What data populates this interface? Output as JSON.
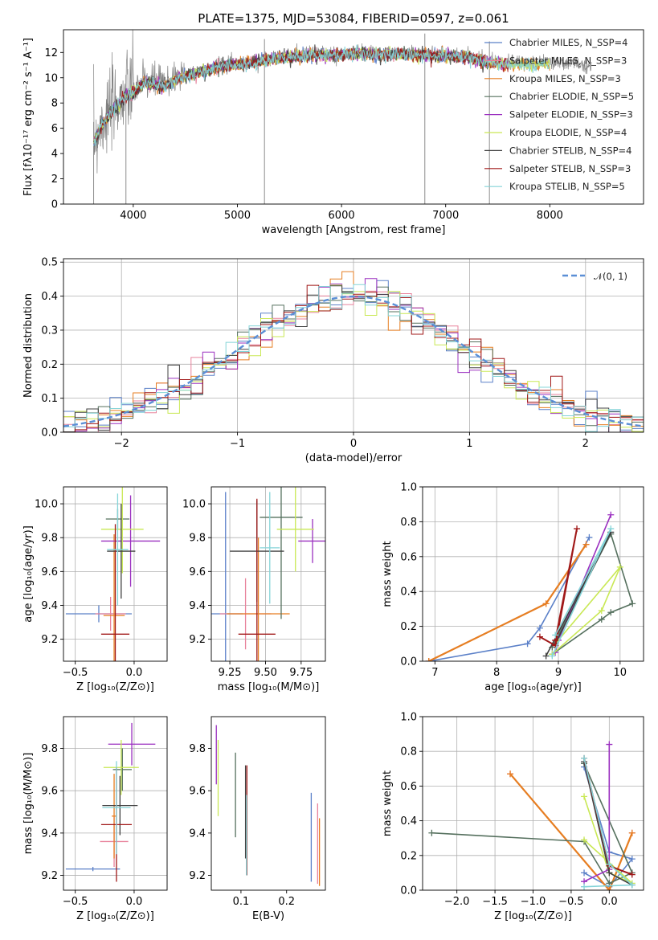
{
  "colors": [
    "#5b80c8",
    "#e8829c",
    "#e67e22",
    "#55705e",
    "#9b30c0",
    "#c9e855",
    "#404040",
    "#a01818",
    "#84d4d8"
  ],
  "chart_data": [
    {
      "id": "spectrum",
      "type": "line",
      "title": "PLATE=1375, MJD=53084, FIBERID=0597, z=0.061",
      "xlabel": "wavelength [Angstrom, rest frame]",
      "ylabel": "Flux [fλ10⁻¹⁷ erg cm⁻² s⁻¹ A⁻¹]",
      "xlim": [
        3330,
        8900
      ],
      "ylim": [
        0,
        13.8
      ],
      "xticks": [
        4000,
        5000,
        6000,
        7000,
        8000
      ],
      "yticks": [
        0,
        2,
        4,
        6,
        8,
        10,
        12
      ],
      "grid": false,
      "legend_position": "right",
      "legend": [
        "Chabrier MILES, N_SSP=4",
        "Salpeter MILES, N_SSP=3",
        "Kroupa MILES, N_SSP=3",
        "Chabrier ELODIE, N_SSP=5",
        "Salpeter ELODIE, N_SSP=3",
        "Kroupa ELODIE, N_SSP=4",
        "Chabrier STELIB, N_SSP=4",
        "Salpeter STELIB, N_SSP=3",
        "Kroupa STELIB, N_SSP=5"
      ],
      "data_color": "#808080",
      "continuum": [
        [
          3620,
          5.0
        ],
        [
          3700,
          6.5
        ],
        [
          3800,
          7.5
        ],
        [
          3900,
          8.6
        ],
        [
          4000,
          9.0
        ],
        [
          4100,
          9.8
        ],
        [
          4200,
          9.7
        ],
        [
          4300,
          9.5
        ],
        [
          4400,
          10.0
        ],
        [
          4500,
          10.3
        ],
        [
          4600,
          10.5
        ],
        [
          4700,
          10.7
        ],
        [
          4800,
          11.0
        ],
        [
          4900,
          11.2
        ],
        [
          5000,
          11.2
        ],
        [
          5100,
          11.3
        ],
        [
          5200,
          11.5
        ],
        [
          5300,
          11.6
        ],
        [
          5400,
          11.8
        ],
        [
          5500,
          11.8
        ],
        [
          5600,
          11.9
        ],
        [
          5800,
          12.0
        ],
        [
          6000,
          12.0
        ],
        [
          6200,
          12.1
        ],
        [
          6400,
          12.0
        ],
        [
          6600,
          12.0
        ],
        [
          6800,
          12.0
        ],
        [
          7000,
          11.9
        ],
        [
          7200,
          11.8
        ],
        [
          7400,
          11.4
        ],
        [
          7600,
          11.2
        ],
        [
          7800,
          11.2
        ],
        [
          8000,
          11.2
        ],
        [
          8200,
          11.1
        ],
        [
          8400,
          11.0
        ]
      ],
      "spikes_down": [
        [
          3620,
          0
        ],
        [
          3930,
          0
        ],
        [
          5260,
          0
        ],
        [
          6800,
          0
        ],
        [
          7420,
          0
        ]
      ],
      "models_end_x": [
        7400,
        7600,
        8000
      ]
    },
    {
      "id": "residuals",
      "type": "histogram",
      "xlabel": "(data-model)/error",
      "ylabel": "Normed distribution",
      "xlim": [
        -2.5,
        2.5
      ],
      "ylim": [
        0,
        0.51
      ],
      "xticks": [
        -2,
        -1,
        0,
        1,
        2
      ],
      "yticks": [
        0.0,
        0.1,
        0.2,
        0.3,
        0.4,
        0.5
      ],
      "grid": true,
      "legend_position": "upper right",
      "legend": [
        "𝒩(0, 1)"
      ],
      "gauss_color": "#5b8fd6",
      "bin_width": 0.1
    },
    {
      "id": "age-vs-z",
      "type": "errorbar",
      "xlabel": "Z [log₁₀(Z/Z⊙)]",
      "ylabel": "age  [log₁₀(age/yr)]",
      "xlim": [
        -0.6,
        0.28
      ],
      "ylim": [
        9.07,
        10.1
      ],
      "xticks": [
        -0.5,
        0.0
      ],
      "yticks": [
        9.2,
        9.4,
        9.6,
        9.8,
        10.0
      ],
      "grid": true,
      "points": [
        {
          "x": -0.3,
          "y": 9.35,
          "xerr": 0.28,
          "yerr": 0.05,
          "c": 0
        },
        {
          "x": -0.2,
          "y": 9.35,
          "xerr": 0.13,
          "yerr": 0.1,
          "c": 1
        },
        {
          "x": -0.17,
          "y": 9.34,
          "xerr": 0.09,
          "yerr": 0.48,
          "c": 2
        },
        {
          "x": -0.14,
          "y": 9.91,
          "xerr": 0.1,
          "yerr": 0.06,
          "c": 3
        },
        {
          "x": -0.03,
          "y": 9.78,
          "xerr": 0.25,
          "yerr": 0.27,
          "c": 4
        },
        {
          "x": -0.1,
          "y": 9.85,
          "xerr": 0.18,
          "yerr": 0.26,
          "c": 5
        },
        {
          "x": -0.11,
          "y": 9.72,
          "xerr": 0.12,
          "yerr": 0.28,
          "c": 6
        },
        {
          "x": -0.16,
          "y": 9.23,
          "xerr": 0.12,
          "yerr": 0.65,
          "c": 7
        },
        {
          "x": -0.14,
          "y": 9.73,
          "xerr": 0.09,
          "yerr": 0.33,
          "c": 8
        }
      ]
    },
    {
      "id": "age-vs-mass",
      "type": "errorbar",
      "xlabel": "mass [log₁₀(M/M⊙)]",
      "ylabel": "",
      "xlim": [
        9.12,
        9.92
      ],
      "ylim": [
        9.07,
        10.1
      ],
      "xticks": [
        9.25,
        9.5,
        9.75
      ],
      "yticks": [
        9.2,
        9.4,
        9.6,
        9.8,
        10.0
      ],
      "grid": true,
      "points": [
        {
          "x": 9.22,
          "y": 9.35,
          "xerr": 0.12,
          "yerr": 0.72,
          "c": 0
        },
        {
          "x": 9.36,
          "y": 9.35,
          "xerr": 0.18,
          "yerr": 0.21,
          "c": 1
        },
        {
          "x": 9.45,
          "y": 9.35,
          "xerr": 0.22,
          "yerr": 0.45,
          "c": 2
        },
        {
          "x": 9.61,
          "y": 9.92,
          "xerr": 0.15,
          "yerr": 0.6,
          "c": 3
        },
        {
          "x": 9.83,
          "y": 9.78,
          "xerr": 0.1,
          "yerr": 0.13,
          "c": 4
        },
        {
          "x": 9.71,
          "y": 9.85,
          "xerr": 0.13,
          "yerr": 0.25,
          "c": 5
        },
        {
          "x": 9.44,
          "y": 9.72,
          "xerr": 0.19,
          "yerr": 0.3,
          "c": 6
        },
        {
          "x": 9.44,
          "y": 9.23,
          "xerr": 0.13,
          "yerr": 0.8,
          "c": 7
        },
        {
          "x": 9.53,
          "y": 9.74,
          "xerr": 0.07,
          "yerr": 0.33,
          "c": 8
        }
      ]
    },
    {
      "id": "weight-vs-age",
      "type": "line",
      "xlabel": "age  [log₁₀(age/yr)]",
      "ylabel": "mass weight",
      "xlim": [
        6.8,
        10.38
      ],
      "ylim": [
        0,
        1.0
      ],
      "xticks": [
        7,
        8,
        9,
        10
      ],
      "yticks": [
        0.0,
        0.2,
        0.4,
        0.6,
        0.8,
        1.0
      ],
      "grid": true,
      "series": [
        {
          "c": 0,
          "w": 1.6,
          "pts": [
            [
              6.9,
              0.0
            ],
            [
              8.5,
              0.1
            ],
            [
              8.7,
              0.19
            ],
            [
              9.5,
              0.71
            ]
          ]
        },
        {
          "c": 1,
          "w": 1.6,
          "pts": [
            [
              6.9,
              0.0
            ],
            [
              8.8,
              0.33
            ],
            [
              9.45,
              0.67
            ]
          ]
        },
        {
          "c": 2,
          "w": 2.2,
          "pts": [
            [
              6.9,
              0.0
            ],
            [
              8.8,
              0.33
            ],
            [
              9.45,
              0.67
            ]
          ]
        },
        {
          "c": 3,
          "w": 1.6,
          "pts": [
            [
              8.9,
              0.04
            ],
            [
              9.7,
              0.24
            ],
            [
              9.85,
              0.28
            ],
            [
              10.2,
              0.33
            ],
            [
              9.85,
              0.73
            ],
            [
              8.9,
              0.08
            ]
          ]
        },
        {
          "c": 4,
          "w": 1.6,
          "pts": [
            [
              8.95,
              0.05
            ],
            [
              9.0,
              0.12
            ],
            [
              9.85,
              0.84
            ]
          ]
        },
        {
          "c": 5,
          "w": 1.6,
          "pts": [
            [
              8.9,
              0.04
            ],
            [
              9.7,
              0.29
            ],
            [
              10.0,
              0.54
            ],
            [
              8.95,
              0.1
            ]
          ]
        },
        {
          "c": 6,
          "w": 1.6,
          "pts": [
            [
              8.8,
              0.03
            ],
            [
              9.85,
              0.74
            ],
            [
              8.95,
              0.1
            ]
          ]
        },
        {
          "c": 7,
          "w": 2.0,
          "pts": [
            [
              8.7,
              0.14
            ],
            [
              8.95,
              0.09
            ],
            [
              9.3,
              0.76
            ],
            [
              8.95,
              0.12
            ]
          ]
        },
        {
          "c": 8,
          "w": 1.6,
          "pts": [
            [
              8.9,
              0.03
            ],
            [
              9.85,
              0.76
            ],
            [
              8.95,
              0.15
            ]
          ]
        }
      ]
    },
    {
      "id": "mass-vs-z",
      "type": "errorbar",
      "xlabel": "Z [log₁₀(Z/Z⊙)]",
      "ylabel": "mass [log₁₀(M/M⊙)]",
      "xlim": [
        -0.6,
        0.28
      ],
      "ylim": [
        9.13,
        9.95
      ],
      "xticks": [
        -0.5,
        0.0
      ],
      "yticks": [
        9.2,
        9.4,
        9.6,
        9.8
      ],
      "grid": true,
      "points": [
        {
          "x": -0.35,
          "y": 9.23,
          "xerr": 0.23,
          "yerr": 0.01,
          "c": 0
        },
        {
          "x": -0.17,
          "y": 9.36,
          "xerr": 0.12,
          "yerr": 0.12,
          "c": 1
        },
        {
          "x": -0.17,
          "y": 9.48,
          "xerr": 0.02,
          "yerr": 0.2,
          "c": 2
        },
        {
          "x": -0.1,
          "y": 9.7,
          "xerr": 0.08,
          "yerr": 0.1,
          "c": 3
        },
        {
          "x": -0.02,
          "y": 9.82,
          "xerr": 0.2,
          "yerr": 0.1,
          "c": 4
        },
        {
          "x": -0.11,
          "y": 9.71,
          "xerr": 0.15,
          "yerr": 0.13,
          "c": 5
        },
        {
          "x": -0.12,
          "y": 9.53,
          "xerr": 0.15,
          "yerr": 0.14,
          "c": 6
        },
        {
          "x": -0.15,
          "y": 9.44,
          "xerr": 0.13,
          "yerr": 0.27,
          "c": 7
        },
        {
          "x": -0.15,
          "y": 9.52,
          "xerr": 0.12,
          "yerr": 0.22,
          "c": 8
        }
      ]
    },
    {
      "id": "mass-vs-ebv",
      "type": "errorbar",
      "xlabel": "E(B-V)",
      "ylabel": "",
      "xlim": [
        0.035,
        0.285
      ],
      "ylim": [
        9.13,
        9.95
      ],
      "xticks": [
        0.1,
        0.2
      ],
      "yticks": [
        9.2,
        9.4,
        9.6,
        9.8
      ],
      "grid": false,
      "points": [
        {
          "x": 0.254,
          "y": 9.38,
          "xerr": 0,
          "yerr": 0.21,
          "c": 0
        },
        {
          "x": 0.268,
          "y": 9.35,
          "xerr": 0,
          "yerr": 0.19,
          "c": 1
        },
        {
          "x": 0.272,
          "y": 9.31,
          "xerr": 0,
          "yerr": 0.16,
          "c": 2
        },
        {
          "x": 0.088,
          "y": 9.58,
          "xerr": 0,
          "yerr": 0.2,
          "c": 3
        },
        {
          "x": 0.046,
          "y": 9.77,
          "xerr": 0,
          "yerr": 0.14,
          "c": 4
        },
        {
          "x": 0.05,
          "y": 9.66,
          "xerr": 0,
          "yerr": 0.18,
          "c": 5
        },
        {
          "x": 0.11,
          "y": 9.5,
          "xerr": 0,
          "yerr": 0.22,
          "c": 6
        },
        {
          "x": 0.113,
          "y": 9.46,
          "xerr": 0,
          "yerr": 0.26,
          "c": 7
        },
        {
          "x": 0.112,
          "y": 9.39,
          "xerr": 0,
          "yerr": 0.19,
          "c": 8
        }
      ]
    },
    {
      "id": "weight-vs-z",
      "type": "line",
      "xlabel": "Z [log₁₀(Z/Z⊙)]",
      "ylabel": "mass weight",
      "xlim": [
        -2.45,
        0.45
      ],
      "ylim": [
        0,
        1.0
      ],
      "xticks": [
        -2.0,
        -1.5,
        -1.0,
        -0.5,
        0.0
      ],
      "yticks": [
        0.0,
        0.2,
        0.4,
        0.6,
        0.8,
        1.0
      ],
      "grid": true,
      "series": [
        {
          "c": 0,
          "w": 1.6,
          "pts": [
            [
              -0.33,
              0.71
            ],
            [
              0.0,
              0.22
            ],
            [
              0.3,
              0.18
            ],
            [
              0.0,
              0.02
            ],
            [
              -0.33,
              0.1
            ]
          ]
        },
        {
          "c": 1,
          "w": 1.6,
          "pts": [
            [
              -1.3,
              0.67
            ],
            [
              0.0,
              0.0
            ],
            [
              0.3,
              0.33
            ]
          ]
        },
        {
          "c": 2,
          "w": 2.2,
          "pts": [
            [
              -1.3,
              0.67
            ],
            [
              0.0,
              0.0
            ],
            [
              0.3,
              0.33
            ]
          ]
        },
        {
          "c": 3,
          "w": 1.6,
          "pts": [
            [
              -2.33,
              0.33
            ],
            [
              -0.33,
              0.28
            ],
            [
              0.0,
              0.04
            ],
            [
              0.3,
              0.1
            ],
            [
              -0.33,
              0.73
            ]
          ]
        },
        {
          "c": 4,
          "w": 1.6,
          "pts": [
            [
              0.0,
              0.84
            ],
            [
              0.0,
              0.12
            ],
            [
              -0.33,
              0.05
            ]
          ]
        },
        {
          "c": 5,
          "w": 1.6,
          "pts": [
            [
              -0.33,
              0.54
            ],
            [
              0.0,
              0.1
            ],
            [
              0.3,
              0.04
            ],
            [
              -0.33,
              0.29
            ]
          ]
        },
        {
          "c": 6,
          "w": 1.6,
          "pts": [
            [
              -0.33,
              0.74
            ],
            [
              0.0,
              0.1
            ],
            [
              0.3,
              0.03
            ]
          ]
        },
        {
          "c": 7,
          "w": 2.0,
          "pts": [
            [
              -0.33,
              0.76
            ],
            [
              0.0,
              0.14
            ],
            [
              0.3,
              0.09
            ]
          ]
        },
        {
          "c": 8,
          "w": 1.6,
          "pts": [
            [
              -0.33,
              0.76
            ],
            [
              0.0,
              0.15
            ],
            [
              0.3,
              0.03
            ],
            [
              -0.33,
              0.02
            ]
          ]
        }
      ]
    }
  ]
}
